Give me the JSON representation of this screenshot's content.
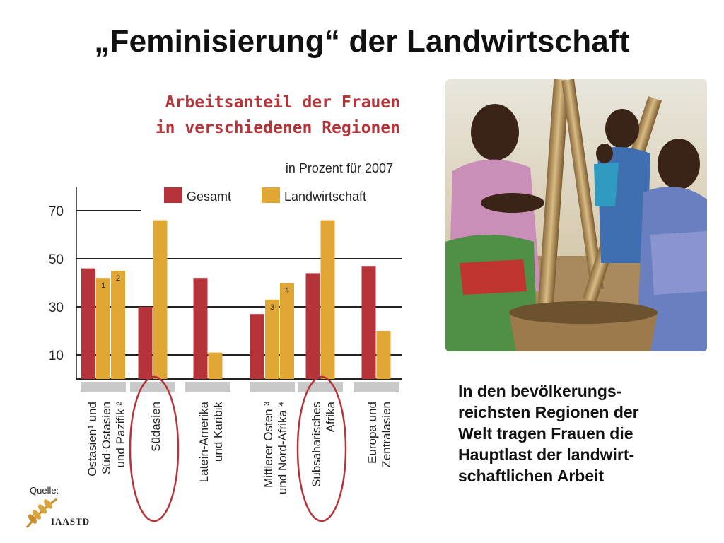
{
  "slide": {
    "title": "„Feminisierung“ der Landwirtschaft",
    "body_lines": [
      "In den bevölkerungs-",
      "reichsten Regionen der",
      "Welt tragen Frauen die",
      "Hauptlast der landwirt-",
      "schaftlichen Arbeit"
    ],
    "source_label": "Quelle:",
    "logo_text": "IAASTD"
  },
  "photo": {
    "icon": "women-pounding-grain-photo"
  },
  "chart_data": {
    "type": "bar",
    "title_lines": [
      "Arbeitsanteil der Frauen",
      "in verschiedenen Regionen"
    ],
    "subtitle": "in Prozent für 2007",
    "yticks": [
      10,
      30,
      50,
      70
    ],
    "ylim": [
      0,
      80
    ],
    "grid": true,
    "legend_position": "top",
    "colors": {
      "Gesamt": "#b5343a",
      "Landwirtschaft": "#e0a735"
    },
    "groups": [
      {
        "category_lines": [
          "Ostasien¹ und",
          "Süd-Ostasien",
          "und Pazifik ²"
        ],
        "bars": [
          {
            "series": "Gesamt",
            "value": 46
          },
          {
            "series": "Landwirtschaft",
            "value": 42,
            "footnote": "1"
          },
          {
            "series": "Landwirtschaft",
            "value": 45,
            "footnote": "2"
          }
        ]
      },
      {
        "category_lines": [
          "Südasien"
        ],
        "highlighted": true,
        "bars": [
          {
            "series": "Gesamt",
            "value": 30
          },
          {
            "series": "Landwirtschaft",
            "value": 66
          }
        ]
      },
      {
        "category_lines": [
          "Latein-Amerika",
          "und Karibik"
        ],
        "bars": [
          {
            "series": "Gesamt",
            "value": 42
          },
          {
            "series": "Landwirtschaft",
            "value": 11
          }
        ]
      },
      {
        "category_lines": [
          "Mittlerer Osten ³",
          "und Nord-Afrika ⁴"
        ],
        "bars": [
          {
            "series": "Gesamt",
            "value": 27
          },
          {
            "series": "Landwirtschaft",
            "value": 33,
            "footnote": "3"
          },
          {
            "series": "Landwirtschaft",
            "value": 40,
            "footnote": "4"
          }
        ]
      },
      {
        "category_lines": [
          "Subsaharisches",
          "Afrika"
        ],
        "highlighted": true,
        "bars": [
          {
            "series": "Gesamt",
            "value": 44
          },
          {
            "series": "Landwirtschaft",
            "value": 66
          }
        ]
      },
      {
        "category_lines": [
          "Europa und",
          "Zentralasien"
        ],
        "bars": [
          {
            "series": "Gesamt",
            "value": 47
          },
          {
            "series": "Landwirtschaft",
            "value": 20
          }
        ]
      }
    ],
    "legend": [
      "Gesamt",
      "Landwirtschaft"
    ]
  }
}
